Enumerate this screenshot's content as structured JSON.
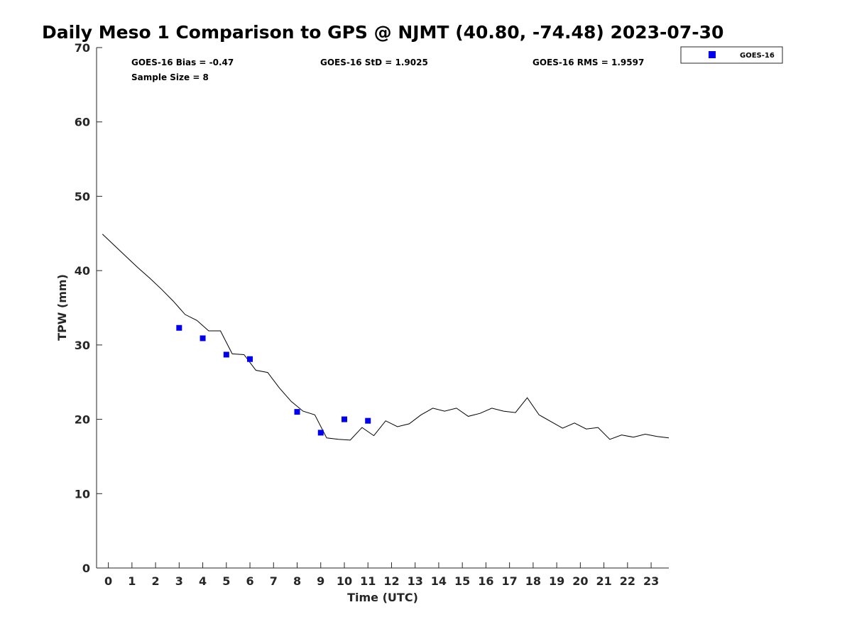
{
  "chart_data": {
    "type": "scatter",
    "title": "Daily Meso 1 Comparison to GPS @ NJMT (40.80, -74.48) 2023-07-30",
    "xlabel": "Time (UTC)",
    "ylabel": "TPW (mm)",
    "xlim": [
      -0.5,
      23.75
    ],
    "ylim": [
      0,
      70
    ],
    "x_ticks": [
      "0",
      "1",
      "2",
      "3",
      "4",
      "5",
      "6",
      "7",
      "8",
      "9",
      "10",
      "11",
      "12",
      "13",
      "14",
      "15",
      "16",
      "17",
      "18",
      "19",
      "20",
      "21",
      "22",
      "23"
    ],
    "y_ticks": [
      "0",
      "10",
      "20",
      "30",
      "40",
      "50",
      "60",
      "70"
    ],
    "grid": false,
    "legend_position": "top-right",
    "stats": {
      "bias": "GOES-16 Bias = -0.47",
      "std": "GOES-16 StD = 1.9025",
      "rms": "GOES-16 RMS = 1.9597",
      "sample": "Sample Size = 8"
    },
    "series": [
      {
        "name": "GOES-16",
        "kind": "scatter",
        "color": "#0000ee",
        "x": [
          3,
          4,
          5,
          6,
          8,
          9,
          10,
          11
        ],
        "y": [
          32.3,
          30.9,
          28.7,
          28.1,
          21.0,
          18.2,
          20.0,
          19.8
        ]
      },
      {
        "kind": "line",
        "color": "#000000",
        "x": [
          -0.25,
          0.25,
          0.75,
          1.25,
          1.75,
          2.25,
          2.75,
          3.25,
          3.75,
          4.25,
          4.75,
          5.25,
          5.75,
          6.25,
          6.75,
          7.25,
          7.75,
          8.25,
          8.75,
          9.25,
          9.75,
          10.25,
          10.75,
          11.25,
          11.75,
          12.25,
          12.75,
          13.25,
          13.75,
          14.25,
          14.75,
          15.25,
          15.75,
          16.25,
          16.75,
          17.25,
          17.75,
          18.25,
          18.75,
          19.25,
          19.75,
          20.25,
          20.75,
          21.25,
          21.75,
          22.25,
          22.75,
          23.25,
          23.75
        ],
        "y": [
          44.9,
          43.4,
          41.9,
          40.4,
          39.0,
          37.5,
          35.9,
          34.1,
          33.3,
          31.9,
          31.9,
          28.8,
          28.7,
          26.6,
          26.3,
          24.2,
          22.4,
          21.1,
          20.6,
          17.5,
          17.3,
          17.2,
          18.9,
          17.8,
          19.8,
          19.0,
          19.4,
          20.6,
          21.5,
          21.1,
          21.5,
          20.4,
          20.8,
          21.5,
          21.1,
          20.9,
          22.9,
          20.6,
          19.7,
          18.8,
          19.5,
          18.7,
          18.9,
          17.3,
          17.9,
          17.6,
          18.0,
          17.7,
          17.5
        ]
      }
    ]
  }
}
